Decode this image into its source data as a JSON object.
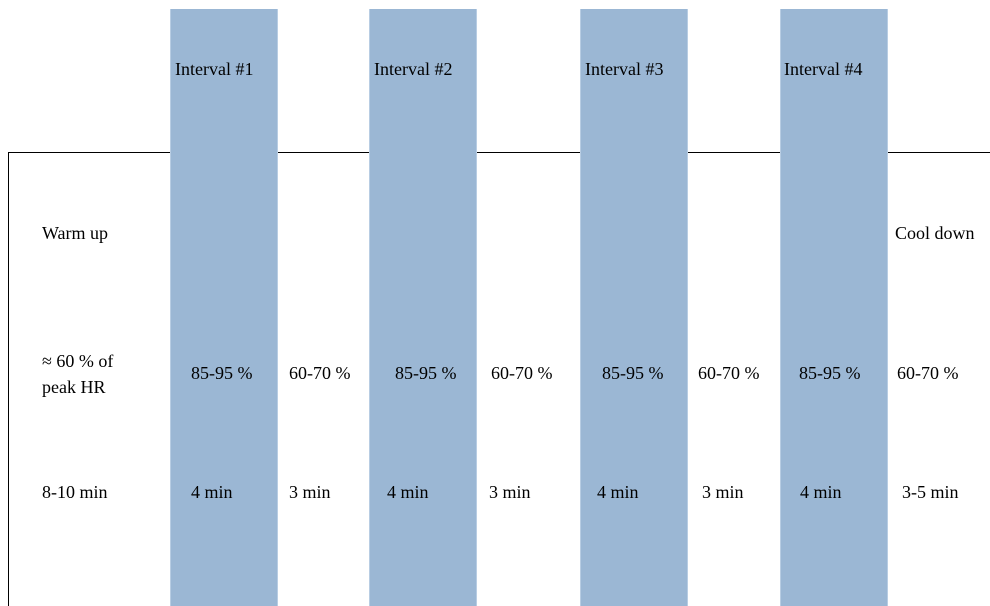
{
  "intervals": [
    {
      "title": "Interval #1",
      "intensity": "85-95 %",
      "duration": "4 min"
    },
    {
      "title": "Interval #2",
      "intensity": "85-95 %",
      "duration": "4 min"
    },
    {
      "title": "Interval #3",
      "intensity": "85-95 %",
      "duration": "4 min"
    },
    {
      "title": "Interval #4",
      "intensity": "85-95 %",
      "duration": "4 min"
    }
  ],
  "recoveries": [
    {
      "intensity": "60-70 %",
      "duration": "3 min"
    },
    {
      "intensity": "60-70 %",
      "duration": "3 min"
    },
    {
      "intensity": "60-70 %",
      "duration": "3 min"
    }
  ],
  "warm_up": {
    "label": "Warm up",
    "intensity_line1": "≈ 60 % of",
    "intensity_line2": "peak HR",
    "duration": "8-10 min"
  },
  "cool_down": {
    "label": "Cool down",
    "intensity": "60-70 %",
    "duration": "3-5 min"
  },
  "colors": {
    "interval_bar": "#9bb7d4",
    "line": "#000000",
    "text": "#000000"
  }
}
